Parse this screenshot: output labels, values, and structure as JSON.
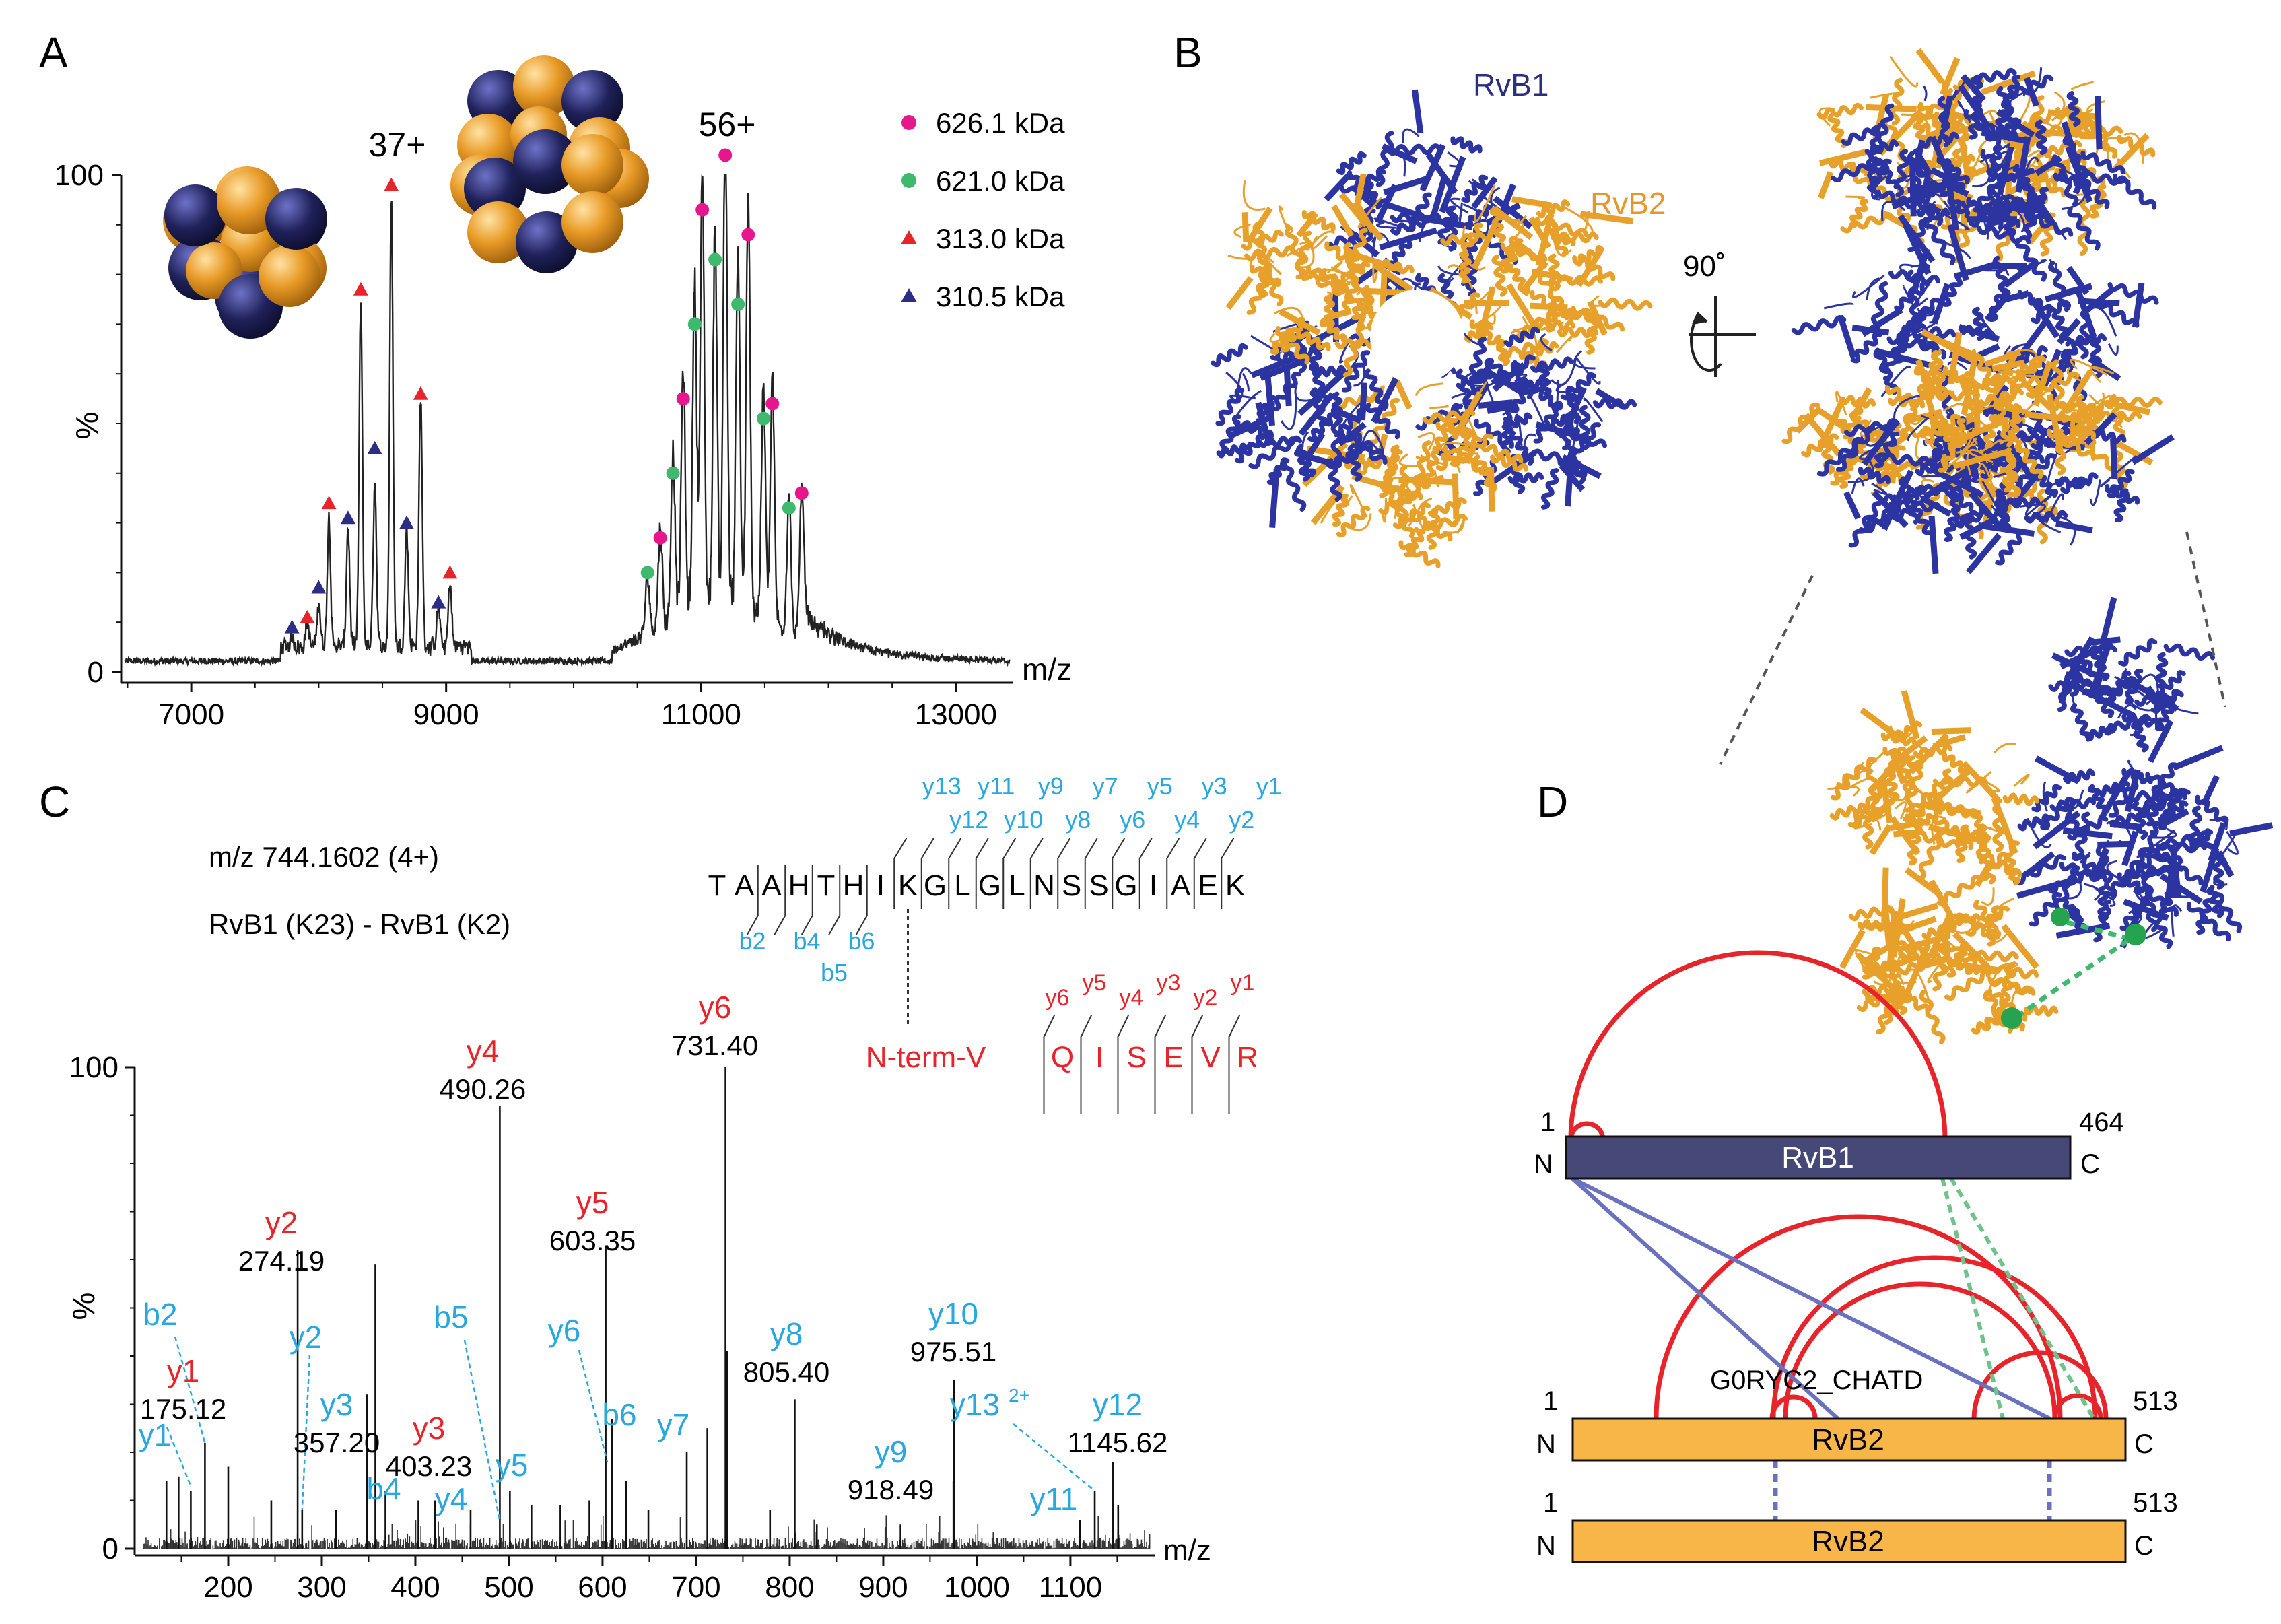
{
  "panels": {
    "a": "A",
    "b": "B",
    "c": "C",
    "d": "D"
  },
  "panel_a": {
    "charge_37": "37+",
    "charge_56": "56+",
    "legend": [
      {
        "label": "626.1 kDa",
        "marker": "circle",
        "color": "#e8168c"
      },
      {
        "label": "621.0 kDa",
        "marker": "circle",
        "color": "#3dba6e"
      },
      {
        "label": "313.0 kDa",
        "marker": "triangle",
        "color": "#e8242b"
      },
      {
        "label": "310.5 kDa",
        "marker": "triangle",
        "color": "#2b2e83"
      }
    ],
    "chart_data": {
      "type": "line",
      "xlabel": "m/z",
      "ylabel": "%",
      "xlim": [
        6450,
        13450
      ],
      "ylim": [
        0,
        100
      ],
      "x_ticks": [
        7000,
        9000,
        11000,
        13000
      ],
      "y_ticks": [
        0,
        100
      ],
      "peaks": [
        {
          "x": 7790,
          "y": 4
        },
        {
          "x": 7910,
          "y": 7
        },
        {
          "x": 8000,
          "y": 11
        },
        {
          "x": 8080,
          "y": 28
        },
        {
          "x": 8230,
          "y": 26
        },
        {
          "x": 8330,
          "y": 71
        },
        {
          "x": 8440,
          "y": 35
        },
        {
          "x": 8570,
          "y": 92
        },
        {
          "x": 8690,
          "y": 26
        },
        {
          "x": 8800,
          "y": 52
        },
        {
          "x": 8940,
          "y": 10
        },
        {
          "x": 9030,
          "y": 15
        },
        {
          "x": 10580,
          "y": 14
        },
        {
          "x": 10680,
          "y": 22
        },
        {
          "x": 10780,
          "y": 36
        },
        {
          "x": 10860,
          "y": 51
        },
        {
          "x": 10950,
          "y": 68
        },
        {
          "x": 11010,
          "y": 88
        },
        {
          "x": 11110,
          "y": 77
        },
        {
          "x": 11190,
          "y": 99
        },
        {
          "x": 11290,
          "y": 73
        },
        {
          "x": 11370,
          "y": 84
        },
        {
          "x": 11490,
          "y": 48
        },
        {
          "x": 11560,
          "y": 51
        },
        {
          "x": 11690,
          "y": 30
        },
        {
          "x": 11790,
          "y": 33
        }
      ],
      "markers": [
        {
          "series": "626.1 kDa",
          "points": [
            [
              10680,
              27
            ],
            [
              10860,
              55
            ],
            [
              11010,
              93
            ],
            [
              11190,
              104
            ],
            [
              11370,
              88
            ],
            [
              11560,
              54
            ],
            [
              11790,
              36
            ]
          ]
        },
        {
          "series": "621.0 kDa",
          "points": [
            [
              10580,
              20
            ],
            [
              10780,
              40
            ],
            [
              10950,
              70
            ],
            [
              11110,
              83
            ],
            [
              11290,
              74
            ],
            [
              11490,
              51
            ],
            [
              11690,
              33
            ]
          ]
        },
        {
          "series": "313.0 kDa",
          "points": [
            [
              7910,
              11
            ],
            [
              8080,
              34
            ],
            [
              8330,
              77
            ],
            [
              8570,
              98
            ],
            [
              8800,
              56
            ],
            [
              9030,
              20
            ]
          ]
        },
        {
          "series": "310.5 kDa",
          "points": [
            [
              7790,
              9
            ],
            [
              8000,
              17
            ],
            [
              8230,
              31
            ],
            [
              8440,
              45
            ],
            [
              8690,
              30
            ],
            [
              8940,
              14
            ]
          ]
        }
      ]
    }
  },
  "panel_b": {
    "label_rvb1": "RvB1",
    "label_rvb2": "RvB2",
    "rotation": "90˚"
  },
  "panel_c": {
    "precursor": "m/z 744.1602 (4+)",
    "crosslink": "RvB1 (K23) - RvB1 (K2)",
    "peptide_alpha": [
      "T",
      "A",
      "A",
      "H",
      "T",
      "H",
      "I",
      "K",
      "G",
      "L",
      "G",
      "L",
      "N",
      "S",
      "S",
      "G",
      "I",
      "A",
      "E",
      "K"
    ],
    "alpha_y_upper": [
      "y13",
      "y11",
      "y9",
      "y7",
      "y5",
      "y3",
      "y1"
    ],
    "alpha_y_lower": [
      "y12",
      "y10",
      "y8",
      "y6",
      "y4",
      "y2"
    ],
    "alpha_b_upper": [
      "b2",
      "b4",
      "b6"
    ],
    "alpha_b_lower": [
      "b5"
    ],
    "beta_nterm": "N-term-V",
    "peptide_beta": [
      "Q",
      "I",
      "S",
      "E",
      "V",
      "R"
    ],
    "beta_y": [
      "y6",
      "y5",
      "y4",
      "y3",
      "y2",
      "y1"
    ],
    "chart_data": {
      "type": "bar",
      "xlabel": "m/z",
      "ylabel": "%",
      "xlim": [
        100,
        1190
      ],
      "ylim": [
        0,
        100
      ],
      "x_ticks": [
        200,
        300,
        400,
        500,
        600,
        700,
        800,
        900,
        1000,
        1100
      ],
      "y_ticks": [
        0,
        100
      ],
      "peaks": [
        {
          "x": 175.12,
          "y": 22
        },
        {
          "x": 274.19,
          "y": 62
        },
        {
          "x": 357.2,
          "y": 59
        },
        {
          "x": 403.23,
          "y": 10
        },
        {
          "x": 490.26,
          "y": 92
        },
        {
          "x": 603.35,
          "y": 63
        },
        {
          "x": 731.4,
          "y": 100
        },
        {
          "x": 805.4,
          "y": 31
        },
        {
          "x": 918.49,
          "y": 5
        },
        {
          "x": 975.51,
          "y": 35
        },
        {
          "x": 1145.62,
          "y": 18
        },
        {
          "x": 134,
          "y": 14
        },
        {
          "x": 147,
          "y": 15
        },
        {
          "x": 160,
          "y": 12
        },
        {
          "x": 200,
          "y": 17
        },
        {
          "x": 246,
          "y": 10
        },
        {
          "x": 279,
          "y": 8
        },
        {
          "x": 315,
          "y": 8
        },
        {
          "x": 348,
          "y": 32
        },
        {
          "x": 368,
          "y": 12
        },
        {
          "x": 421,
          "y": 10
        },
        {
          "x": 459,
          "y": 8
        },
        {
          "x": 501,
          "y": 12
        },
        {
          "x": 524,
          "y": 9
        },
        {
          "x": 555,
          "y": 9
        },
        {
          "x": 586,
          "y": 10
        },
        {
          "x": 610,
          "y": 27
        },
        {
          "x": 625,
          "y": 14
        },
        {
          "x": 649,
          "y": 8
        },
        {
          "x": 690,
          "y": 20
        },
        {
          "x": 712,
          "y": 25
        },
        {
          "x": 733,
          "y": 41
        },
        {
          "x": 779,
          "y": 8
        },
        {
          "x": 829,
          "y": 5
        },
        {
          "x": 975,
          "y": 14
        },
        {
          "x": 1110,
          "y": 6
        },
        {
          "x": 1126,
          "y": 12
        },
        {
          "x": 1151,
          "y": 9
        }
      ],
      "annotations": [
        {
          "ion": "b2",
          "type": "b",
          "mz": null
        },
        {
          "ion": "y1",
          "type": "y_beta",
          "mz": "175.12"
        },
        {
          "ion": "y1",
          "type": "y_alpha",
          "mz": null
        },
        {
          "ion": "y2",
          "type": "y_beta",
          "mz": "274.19"
        },
        {
          "ion": "y2",
          "type": "y_alpha",
          "mz": null
        },
        {
          "ion": "y3",
          "type": "y_alpha",
          "mz": "357.20"
        },
        {
          "ion": "y3",
          "type": "y_beta",
          "mz": "403.23"
        },
        {
          "ion": "b4",
          "type": "b",
          "mz": null
        },
        {
          "ion": "y4",
          "type": "y_beta",
          "mz": "490.26"
        },
        {
          "ion": "b5",
          "type": "b",
          "mz": null
        },
        {
          "ion": "y4",
          "type": "y_alpha",
          "mz": null
        },
        {
          "ion": "y5",
          "type": "y_alpha",
          "mz": null
        },
        {
          "ion": "y5",
          "type": "y_beta",
          "mz": "603.35"
        },
        {
          "ion": "y6",
          "type": "y_alpha",
          "mz": null
        },
        {
          "ion": "b6",
          "type": "b",
          "mz": null
        },
        {
          "ion": "y7",
          "type": "y_alpha",
          "mz": null
        },
        {
          "ion": "y6",
          "type": "y_beta",
          "mz": "731.40"
        },
        {
          "ion": "y8",
          "type": "y_alpha",
          "mz": "805.40"
        },
        {
          "ion": "y9",
          "type": "y_alpha",
          "mz": "918.49"
        },
        {
          "ion": "y10",
          "type": "y_alpha",
          "mz": "975.51"
        },
        {
          "ion": "y11",
          "type": "y_alpha",
          "mz": null
        },
        {
          "ion": "y13",
          "type": "y_alpha",
          "mz": null
        },
        {
          "ion": "y12",
          "type": "y_alpha",
          "mz": "1145.62"
        }
      ],
      "y13_charge": "2+"
    }
  },
  "panel_d": {
    "rvb1": {
      "name": "RvB1",
      "start": "1",
      "end": "464",
      "n": "N",
      "c": "C"
    },
    "rvb2": {
      "name": "RvB2",
      "start": "1",
      "end": "513",
      "n": "N",
      "c": "C"
    },
    "rvb2_b": {
      "name": "RvB2",
      "start": "1",
      "end": "513",
      "n": "N",
      "c": "C"
    },
    "domain_label": "G0RYC2_CHATD"
  },
  "colors": {
    "navy": "#2b2e83",
    "gold": "#f6a935",
    "red": "#e8242b",
    "cyan": "#29a8e0",
    "rvb1_bar": "#464978",
    "rvb2_bar": "#f8b548"
  }
}
